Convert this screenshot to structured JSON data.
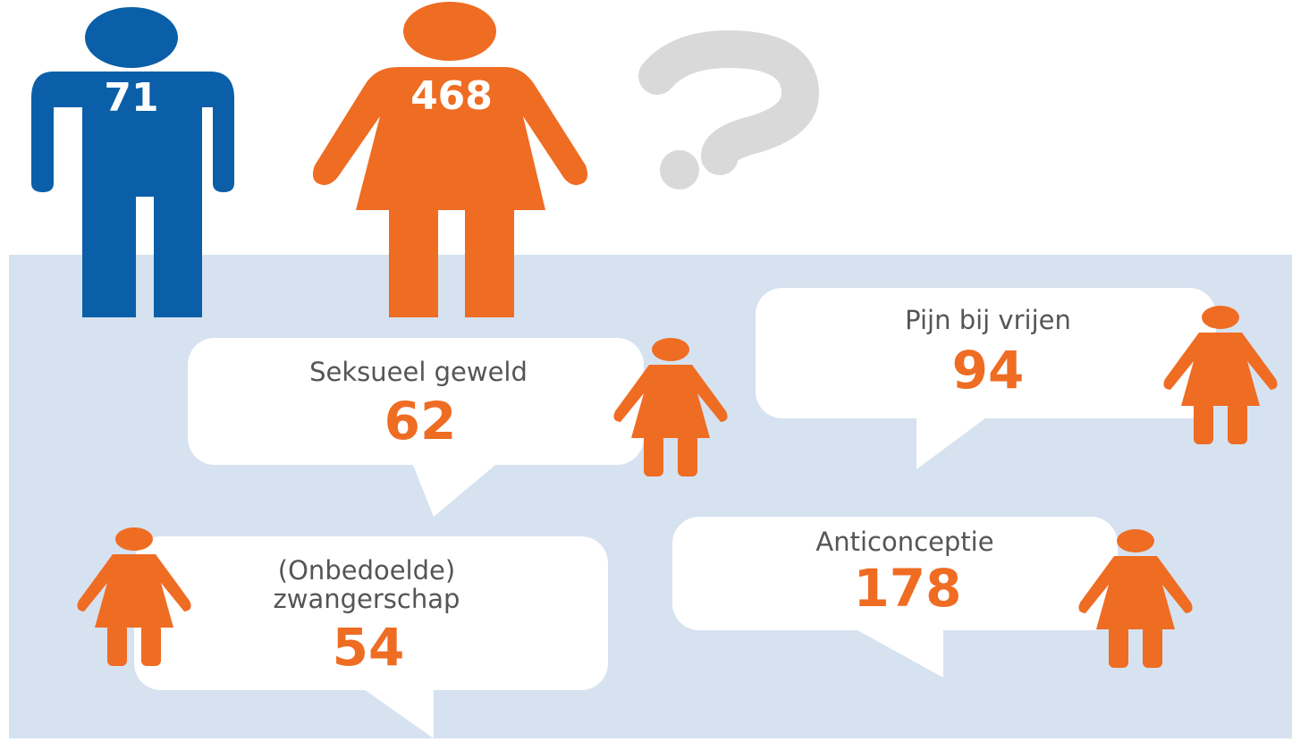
{
  "figures": {
    "men": "71",
    "women": "468"
  },
  "bubbles": [
    {
      "label": [
        "Seksueel geweld"
      ],
      "value": "62"
    },
    {
      "label": [
        "Pijn bij vrijen"
      ],
      "value": "94"
    },
    {
      "label": [
        "(Onbedoelde)",
        "zwangerschap"
      ],
      "value": "54"
    },
    {
      "label": [
        "Anticonceptie"
      ],
      "value": "178"
    }
  ]
}
